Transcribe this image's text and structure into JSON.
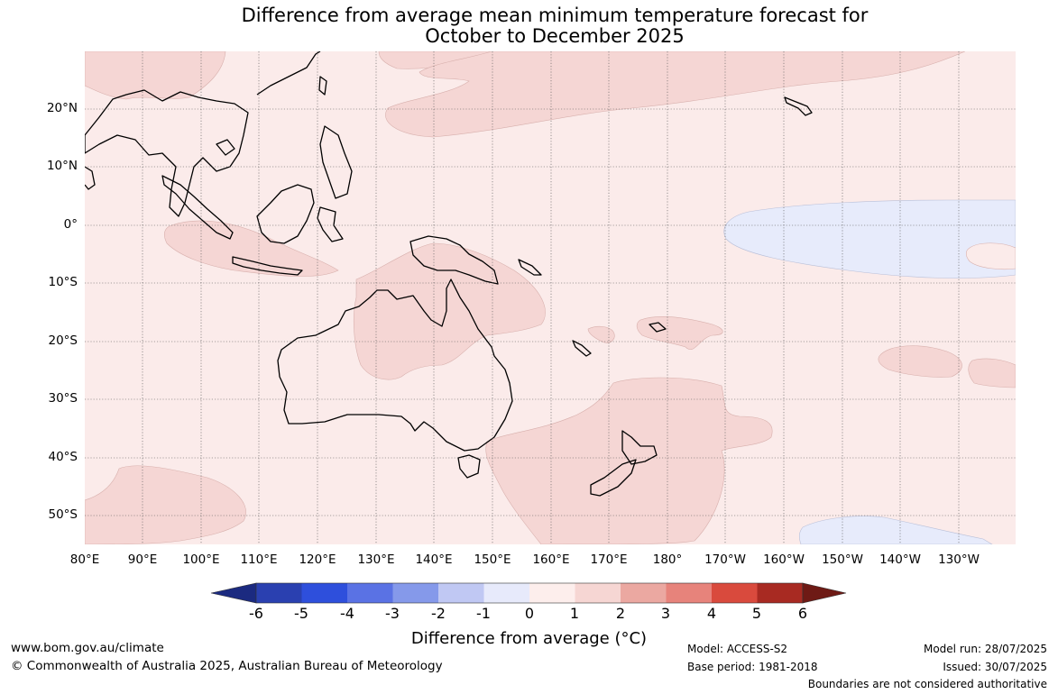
{
  "title": {
    "line1": "Difference from average mean minimum temperature forecast for",
    "line2": "October to December 2025"
  },
  "map": {
    "lat_labels": [
      "20°N",
      "10°N",
      "0°",
      "10°S",
      "20°S",
      "30°S",
      "40°S",
      "50°S"
    ],
    "lon_labels": [
      "80°E",
      "90°E",
      "100°E",
      "110°E",
      "120°E",
      "130°E",
      "140°E",
      "150°E",
      "160°E",
      "170°E",
      "180°",
      "170°W",
      "160°W",
      "150°W",
      "140°W",
      "130°W"
    ],
    "background_anomaly": "0 to 1",
    "colors": {
      "ocean_base": "#fbebea",
      "warm_1_2": "#f5d6d4",
      "cool_minus1_0": "#e7ebfb",
      "grid": "#555555",
      "coast": "#000000"
    }
  },
  "colorbar": {
    "ticks": [
      "-6",
      "-5",
      "-4",
      "-3",
      "-2",
      "-1",
      "0",
      "1",
      "2",
      "3",
      "4",
      "5",
      "6"
    ],
    "colors": [
      "#1b2a80",
      "#2a40b0",
      "#2e4fdc",
      "#5a72e4",
      "#8599ea",
      "#c0c8f3",
      "#e7eafb",
      "#fdeeec",
      "#f6d6d3",
      "#eba8a1",
      "#e7837b",
      "#d94a3d",
      "#a82a22",
      "#6e1a15"
    ],
    "label": "Difference from average (°C)",
    "label_text": "Difference from average (",
    "label_unit": "°C)"
  },
  "footer": {
    "website": "www.bom.gov.au/climate",
    "copyright": "© Commonwealth of Australia 2025, Australian Bureau of Meteorology",
    "model": "Model: ACCESS-S2",
    "base_period": "Base period: 1981-2018",
    "model_run": "Model run: 28/07/2025",
    "issued": "Issued: 30/07/2025",
    "disclaimer": "Boundaries are not considered authoritative"
  }
}
